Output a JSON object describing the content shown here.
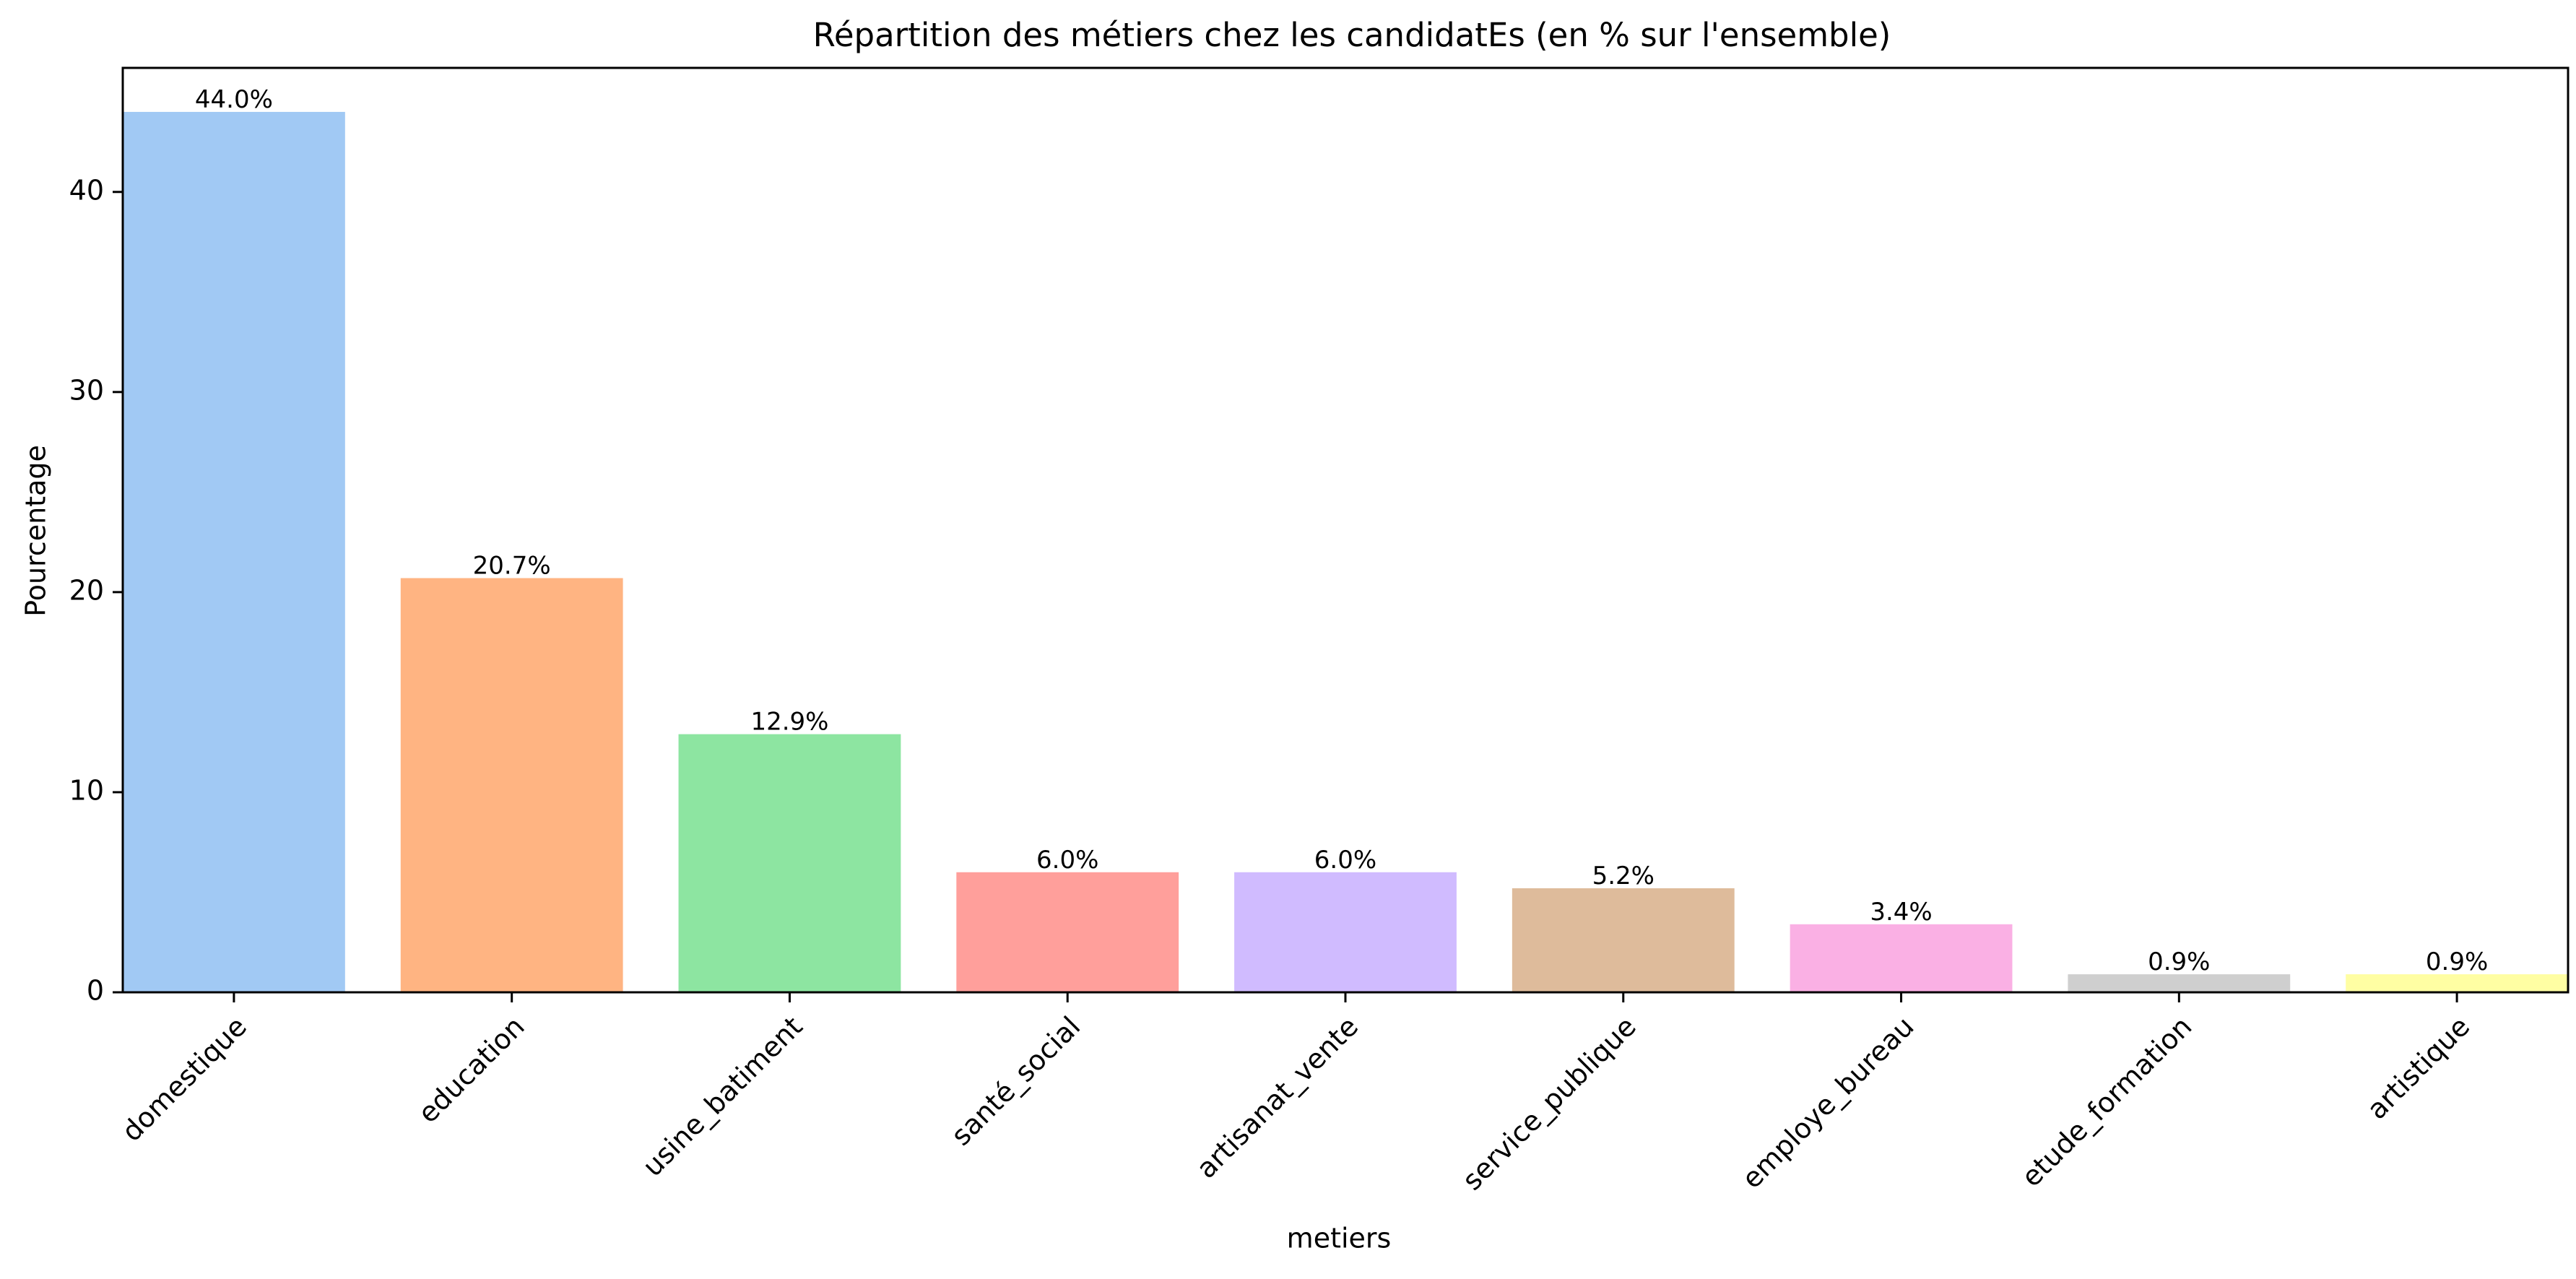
{
  "chart_data": {
    "type": "bar",
    "title": "Répartition des métiers chez les candidatEs (en % sur l'ensemble)",
    "xlabel": "metiers",
    "ylabel": "Pourcentage",
    "categories": [
      "domestique",
      "education",
      "usine_batiment",
      "santé_social",
      "artisanat_vente",
      "service_publique",
      "employe_bureau",
      "etude_formation",
      "artistique"
    ],
    "values": [
      44.0,
      20.7,
      12.9,
      6.0,
      6.0,
      5.2,
      3.4,
      0.9,
      0.9
    ],
    "value_labels": [
      "44.0%",
      "20.7%",
      "12.9%",
      "6.0%",
      "6.0%",
      "5.2%",
      "3.4%",
      "0.9%",
      "0.9%"
    ],
    "colors": [
      "#a1c9f4",
      "#ffb482",
      "#8de5a1",
      "#ff9f9b",
      "#d0bbff",
      "#debb9b",
      "#fab0e4",
      "#cfcfcf",
      "#fffea3"
    ],
    "ylim": [
      0,
      46.2
    ],
    "yticks": [
      0,
      10,
      20,
      30,
      40
    ],
    "grid": false,
    "legend": "none"
  }
}
